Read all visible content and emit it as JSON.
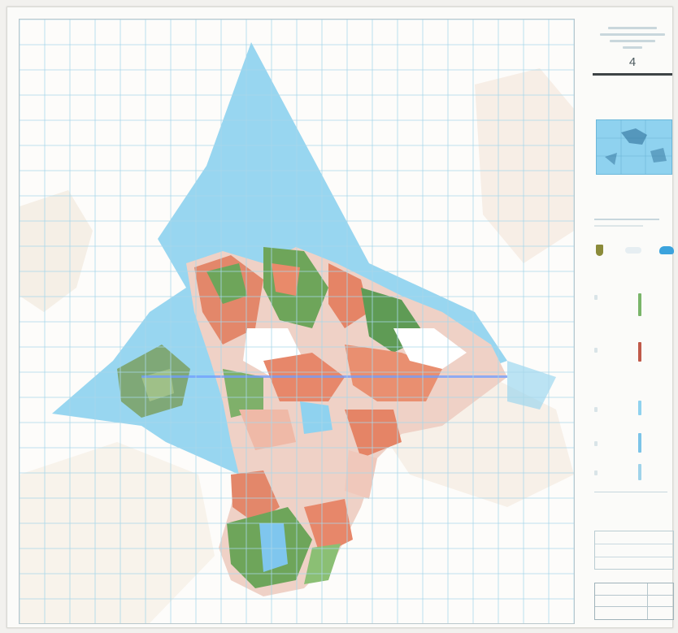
{
  "map": {
    "sheet_number": "4"
  },
  "colors": {
    "sea": "#8fd2ef",
    "grid": "#a9d7ea",
    "geology_green": "#6ea55a",
    "geology_orange": "#ea8f70",
    "geology_pink": "#efc2b5",
    "geology_white": "#ffffff",
    "land_faint": "#f1e6d8"
  },
  "icons": [
    "shield-icon",
    "whale-icon"
  ]
}
